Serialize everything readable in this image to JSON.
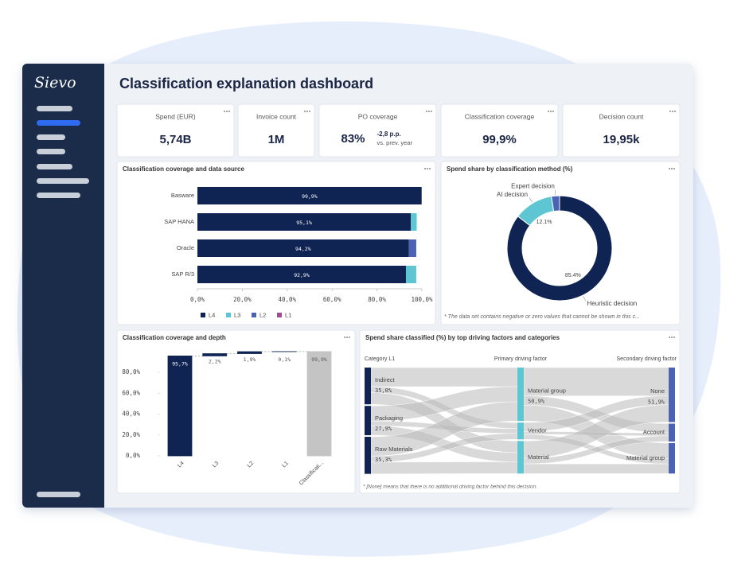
{
  "sidebar": {
    "logo": "Sievo"
  },
  "header": {
    "title": "Classification explanation dashboard"
  },
  "kpis": [
    {
      "label": "Spend (EUR)",
      "value": "5,74B"
    },
    {
      "label": "Invoice count",
      "value": "1M"
    },
    {
      "label": "PO coverage",
      "value": "83%",
      "delta": "-2,8 p.p.",
      "delta_note": "vs. prev. year"
    },
    {
      "label": "Classification coverage",
      "value": "99,9%"
    },
    {
      "label": "Decision count",
      "value": "19,95k"
    }
  ],
  "coverage_by_source": {
    "type": "bar",
    "orientation": "horizontal",
    "stacked": true,
    "title": "Classification coverage and data source",
    "categories": [
      "Basware",
      "SAP HANA",
      "Oracle",
      "SAP R/3"
    ],
    "series": [
      {
        "name": "L4",
        "color": "#0f2453",
        "values": [
          99.9,
          95.1,
          94.2,
          92.9
        ],
        "value_labels": [
          "99,9%",
          "95,1%",
          "94,2%",
          "92,9%"
        ]
      },
      {
        "name": "L3",
        "color": "#5ec6d3",
        "values": [
          0,
          2.6,
          0,
          4.6
        ]
      },
      {
        "name": "L2",
        "color": "#4b62b5",
        "values": [
          0,
          0,
          3.3,
          0
        ]
      },
      {
        "name": "L1",
        "color": "#a24a92",
        "values": [
          0,
          0,
          0,
          0
        ]
      }
    ],
    "xlim": [
      0,
      100
    ],
    "xticks": [
      {
        "value": 0,
        "label": "0,0%"
      },
      {
        "value": 20,
        "label": "20,0%"
      },
      {
        "value": 40,
        "label": "40,0%"
      },
      {
        "value": 60,
        "label": "60,0%"
      },
      {
        "value": 80,
        "label": "80,0%"
      },
      {
        "value": 100,
        "label": "100,0%"
      }
    ],
    "legend": "bottom"
  },
  "spend_by_method": {
    "type": "pie",
    "donut": true,
    "title": "Spend share by classification method (%)",
    "categories": [
      "Heuristic decision",
      "AI decision",
      "Expert decision"
    ],
    "values": [
      85.4,
      12.1,
      2.5
    ],
    "value_labels": [
      "85.4%",
      "12.1%",
      null
    ],
    "colors": [
      "#0f2453",
      "#5ec6d3",
      "#4b62b5"
    ],
    "note": "* The data set contains negative or zero values that cannot be shown in this c..."
  },
  "coverage_by_depth": {
    "type": "waterfall",
    "title": "Classification coverage and depth",
    "categories": [
      "L4",
      "L3",
      "L2",
      "L1",
      "Classificati..."
    ],
    "values": [
      95.7,
      2.2,
      1.9,
      0.1,
      99.9
    ],
    "value_labels": [
      "95,7%",
      "2,2%",
      "1,9%",
      "0,1%",
      "99,9%"
    ],
    "total": [
      false,
      false,
      false,
      false,
      true
    ],
    "colors": [
      "#0f2453",
      "#0f2453",
      "#0f2453",
      "#0f2453",
      "#c4c4c4"
    ],
    "ylim": [
      0,
      100
    ],
    "yticks": [
      {
        "value": 0,
        "label": "0,0%"
      },
      {
        "value": 20,
        "label": "20,0%"
      },
      {
        "value": 40,
        "label": "40,0%"
      },
      {
        "value": 60,
        "label": "60,0%"
      },
      {
        "value": 80,
        "label": "80,0%"
      }
    ]
  },
  "spend_by_factor": {
    "type": "sankey",
    "title": "Spend share classified (%) by top driving factors and categories",
    "columns": [
      {
        "name": "Category L1",
        "color": "#0f2453",
        "nodes": [
          {
            "label": "Indirect",
            "value": 35.0,
            "value_label": "35,0%"
          },
          {
            "label": "Packaging",
            "value": 27.9,
            "value_label": "27,9%"
          },
          {
            "label": "Raw Materials",
            "value": 35.3,
            "value_label": "35,3%"
          }
        ]
      },
      {
        "name": "Primary driving factor",
        "color": "#5ec6d3",
        "nodes": [
          {
            "label": "Material group",
            "value": 50.9,
            "value_label": "50,9%"
          },
          {
            "label": "Vendor",
            "value": 16
          },
          {
            "label": "Material",
            "value": 31
          }
        ]
      },
      {
        "name": "Secondary driving factor",
        "color": "#4b62b5",
        "nodes": [
          {
            "label": "None",
            "value": 51.9,
            "value_label": "51,9%"
          },
          {
            "label": "Account",
            "value": 17
          },
          {
            "label": "Material group",
            "value": 29
          }
        ]
      }
    ],
    "note": "* [None] means that there is no additional driving factor behind this decision."
  }
}
